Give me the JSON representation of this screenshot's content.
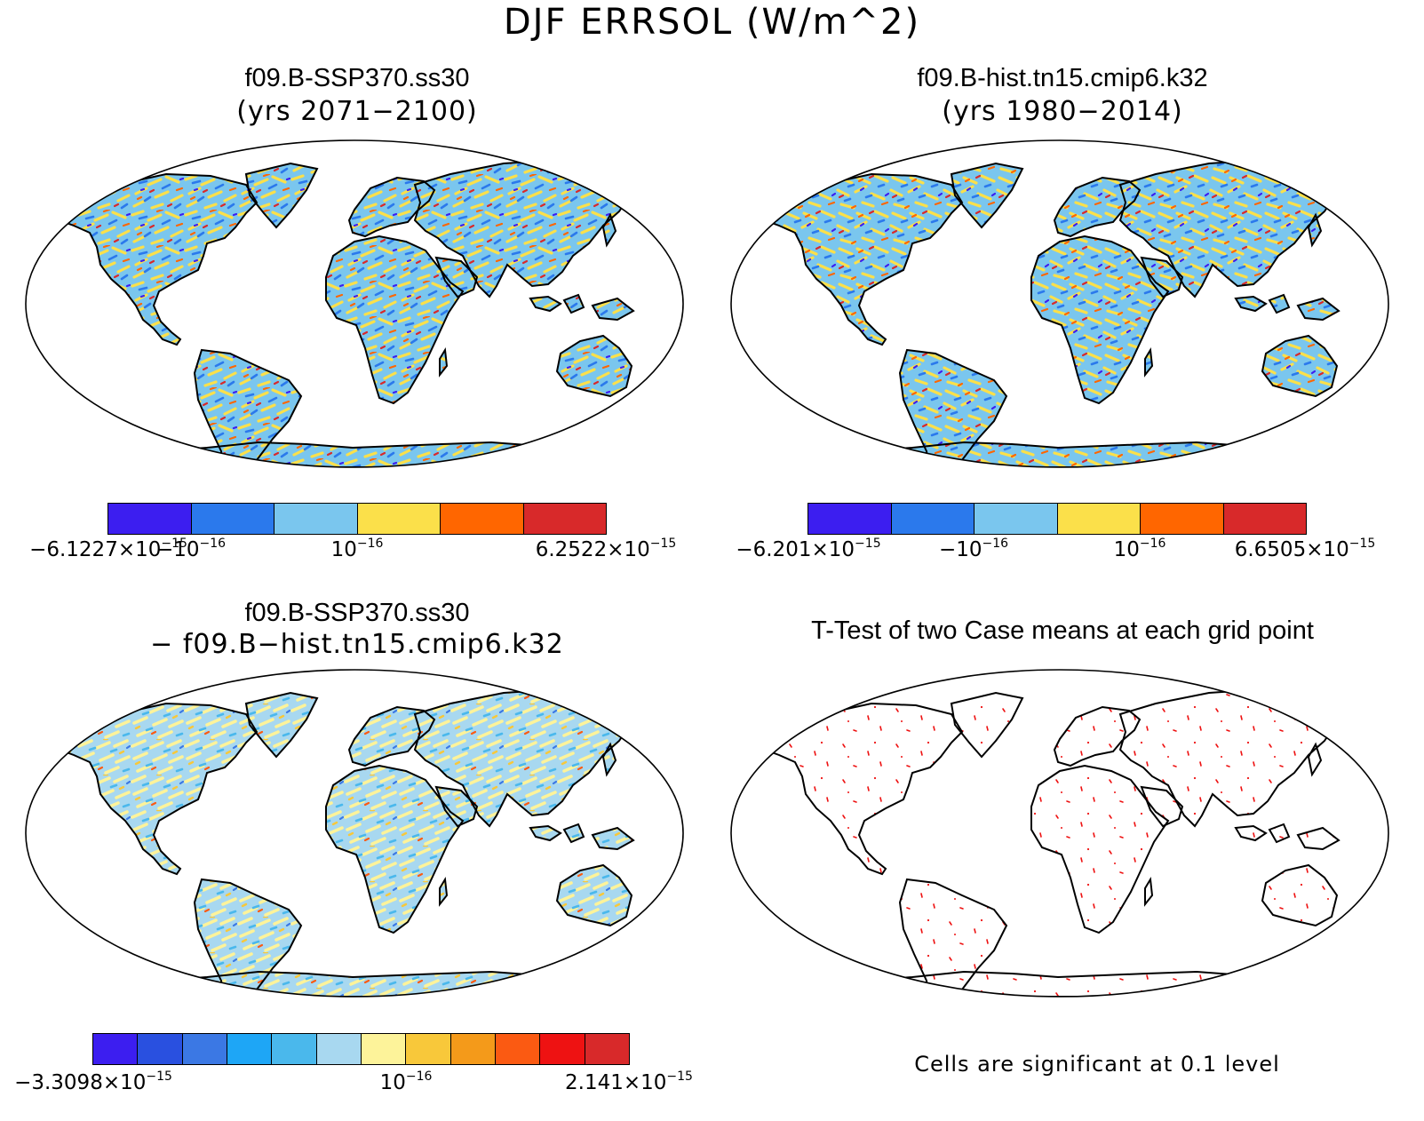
{
  "title": "DJF ERRSOL (W/m^2)",
  "panels": [
    {
      "id": "p1",
      "title": "f09.B-SSP370.ss30",
      "subtitle": "(yrs 2071−2100)",
      "palette": [
        "#3c1ef0",
        "#2b79ec",
        "#7ac6ee",
        "#fbe04a",
        "#ff6600",
        "#d8292a"
      ],
      "colorbar_labels": [
        {
          "base": "−6.1227×10",
          "exp": "−15"
        },
        {
          "base": "−10",
          "exp": "−16"
        },
        {
          "base": "10",
          "exp": "−16"
        },
        {
          "base": "6.2522×10",
          "exp": "−15"
        }
      ]
    },
    {
      "id": "p2",
      "title": "f09.B-hist.tn15.cmip6.k32",
      "subtitle": "(yrs 1980−2014)",
      "palette": [
        "#3c1ef0",
        "#2b79ec",
        "#7ac6ee",
        "#fbe04a",
        "#ff6600",
        "#d8292a"
      ],
      "colorbar_labels": [
        {
          "base": "−6.201×10",
          "exp": "−15"
        },
        {
          "base": "−10",
          "exp": "−16"
        },
        {
          "base": "10",
          "exp": "−16"
        },
        {
          "base": "6.6505×10",
          "exp": "−15"
        }
      ]
    },
    {
      "id": "p3",
      "title": "f09.B-SSP370.ss30",
      "subtitle": "− f09.B−hist.tn15.cmip6.k32",
      "palette": [
        "#3c1ef0",
        "#2950e0",
        "#3b78e4",
        "#1ea6f6",
        "#4ab8ec",
        "#a8d8f0",
        "#fdf39a",
        "#f8c83a",
        "#f49a1a",
        "#fb5a12",
        "#ee1212",
        "#d8292a"
      ],
      "colorbar_labels": [
        {
          "base": "−3.3098×10",
          "exp": "−15"
        },
        {
          "base": "10",
          "exp": "−16"
        },
        {
          "base": "2.141×10",
          "exp": "−15"
        }
      ]
    },
    {
      "id": "p4",
      "title": "T-Test of two Case means at each grid point",
      "note": "Cells are significant at 0.1 level",
      "significance_color": "#ee1111"
    }
  ]
}
